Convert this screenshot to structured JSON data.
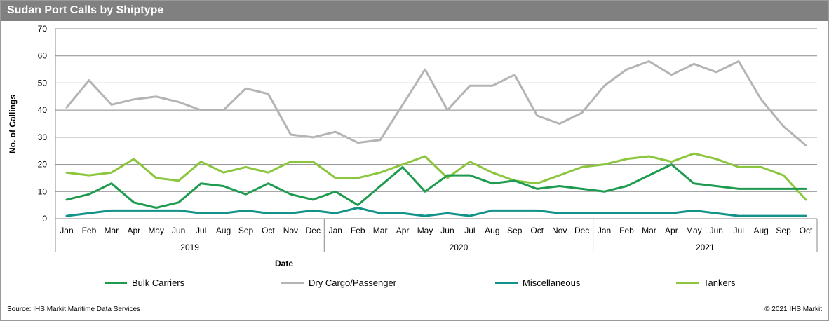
{
  "title": "Sudan Port Calls by Shiptype",
  "footer": {
    "source": "Source: IHS Markit Maritime Data Services",
    "copyright": "© 2021 IHS Markit"
  },
  "chart_data": {
    "type": "line",
    "title": "Sudan Port Calls by Shiptype",
    "xlabel": "Date",
    "ylabel": "No. of Callings",
    "ylim": [
      0,
      70
    ],
    "yticks": [
      0,
      10,
      20,
      30,
      40,
      50,
      60,
      70
    ],
    "grid": "horizontal",
    "legend_position": "bottom",
    "categories": [
      "Jan",
      "Feb",
      "Mar",
      "Apr",
      "May",
      "Jun",
      "Jul",
      "Aug",
      "Sep",
      "Oct",
      "Nov",
      "Dec",
      "Jan",
      "Feb",
      "Mar",
      "Apr",
      "May",
      "Jun",
      "Jul",
      "Aug",
      "Sep",
      "Oct",
      "Nov",
      "Dec",
      "Jan",
      "Feb",
      "Mar",
      "Apr",
      "May",
      "Jun",
      "Jul",
      "Aug",
      "Sep",
      "Oct"
    ],
    "groups": [
      {
        "label": "2019",
        "count": 12
      },
      {
        "label": "2020",
        "count": 12
      },
      {
        "label": "2021",
        "count": 10
      }
    ],
    "series": [
      {
        "name": "Bulk Carriers",
        "color": "#1e9b4e",
        "values": [
          7,
          9,
          13,
          6,
          4,
          6,
          13,
          12,
          9,
          13,
          9,
          7,
          10,
          5,
          12,
          19,
          10,
          16,
          16,
          13,
          14,
          11,
          12,
          11,
          10,
          12,
          16,
          20,
          13,
          12,
          11,
          11,
          11,
          11
        ]
      },
      {
        "name": "Dry Cargo/Passenger",
        "color": "#b4b4b4",
        "values": [
          41,
          51,
          42,
          44,
          45,
          43,
          40,
          40,
          48,
          46,
          31,
          30,
          32,
          28,
          29,
          42,
          55,
          40,
          49,
          49,
          53,
          38,
          35,
          39,
          49,
          55,
          58,
          53,
          57,
          54,
          58,
          44,
          34,
          27
        ]
      },
      {
        "name": "Miscellaneous",
        "color": "#13928a",
        "values": [
          1,
          2,
          3,
          3,
          3,
          3,
          2,
          2,
          3,
          2,
          2,
          3,
          2,
          4,
          2,
          2,
          1,
          2,
          1,
          3,
          3,
          3,
          2,
          2,
          2,
          2,
          2,
          2,
          3,
          2,
          1,
          1,
          1,
          1
        ]
      },
      {
        "name": "Tankers",
        "color": "#8cc63f",
        "values": [
          17,
          16,
          17,
          22,
          15,
          14,
          21,
          17,
          19,
          17,
          21,
          21,
          15,
          15,
          17,
          20,
          23,
          15,
          21,
          17,
          14,
          13,
          16,
          19,
          20,
          22,
          23,
          21,
          24,
          22,
          19,
          19,
          16,
          7
        ]
      }
    ]
  }
}
